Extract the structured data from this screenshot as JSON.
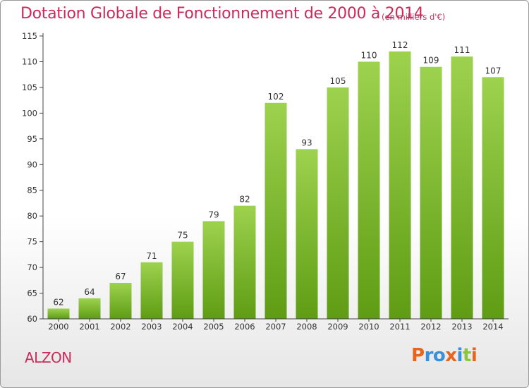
{
  "header": {
    "title": "Dotation Globale de Fonctionnement de 2000 à 2014",
    "subtitle": "(en milliers d'€)"
  },
  "footer": {
    "commune": "ALZON",
    "logo_text": "Proxiti"
  },
  "colors": {
    "title": "#cc2a5c",
    "bar_light": "#9dd24e",
    "bar_dark": "#5f9c14",
    "axis": "#444444",
    "logo": [
      "#e8641c",
      "#3a8fd6",
      "#3a8fd6",
      "#e8641c",
      "#3a8fd6",
      "#8cc63f",
      "#e8641c"
    ]
  },
  "chart_data": {
    "type": "bar",
    "title": "Dotation Globale de Fonctionnement de 2000 à 2014",
    "subtitle": "(en milliers d'€)",
    "xlabel": "",
    "ylabel": "",
    "categories": [
      "2000",
      "2001",
      "2002",
      "2003",
      "2004",
      "2005",
      "2006",
      "2007",
      "2008",
      "2009",
      "2010",
      "2011",
      "2012",
      "2013",
      "2014"
    ],
    "values": [
      62,
      64,
      67,
      71,
      75,
      79,
      82,
      102,
      93,
      105,
      110,
      112,
      109,
      111,
      107
    ],
    "ylim": [
      60,
      115
    ],
    "yticks": [
      60,
      65,
      70,
      75,
      80,
      85,
      90,
      95,
      100,
      105,
      110,
      115
    ],
    "grid": false,
    "data_labels": true
  }
}
